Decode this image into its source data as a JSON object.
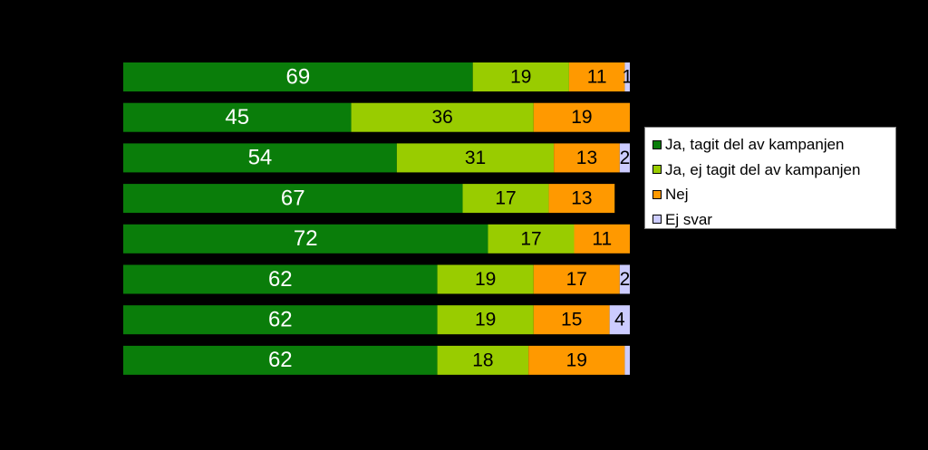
{
  "chart_data": {
    "type": "bar",
    "orientation": "horizontal",
    "stacked": true,
    "percent_stacked": true,
    "grid": false,
    "legend_position": "right",
    "categories": [
      "",
      "",
      "",
      "",
      "",
      "",
      "",
      ""
    ],
    "series": [
      {
        "name": "Ja, tagit del av kampanjen",
        "color": "#0a7d0a",
        "values": [
          69,
          45,
          54,
          67,
          72,
          62,
          62,
          62
        ],
        "labels": [
          "69",
          "45",
          "54",
          "67",
          "72",
          "62",
          "62",
          "62"
        ]
      },
      {
        "name": "Ja, ej tagit del av kampanjen",
        "color": "#99cc00",
        "values": [
          19,
          36,
          31,
          17,
          17,
          19,
          19,
          18
        ],
        "labels": [
          "19",
          "36",
          "31",
          "17",
          "17",
          "19",
          "19",
          "18"
        ]
      },
      {
        "name": "Nej",
        "color": "#ff9900",
        "values": [
          11,
          19,
          13,
          13,
          11,
          17,
          15,
          19
        ],
        "labels": [
          "11",
          "19",
          "13",
          "13",
          "11",
          "17",
          "15",
          "19"
        ]
      },
      {
        "name": "Ej svar",
        "color": "#ccccff",
        "values": [
          1,
          0,
          2,
          0,
          0,
          2,
          4,
          1
        ],
        "labels": [
          "1",
          "",
          "2",
          "",
          "",
          "2",
          "4",
          ""
        ]
      }
    ],
    "xlim": [
      0,
      100
    ]
  }
}
